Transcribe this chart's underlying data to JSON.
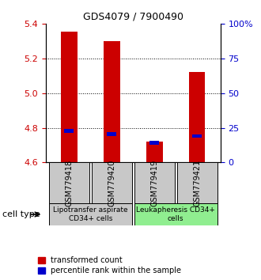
{
  "title": "GDS4079 / 7900490",
  "samples": [
    "GSM779418",
    "GSM779420",
    "GSM779419",
    "GSM779421"
  ],
  "red_values": [
    5.355,
    5.3,
    4.72,
    5.12
  ],
  "blue_values": [
    4.78,
    4.762,
    4.712,
    4.752
  ],
  "bar_bottom": 4.6,
  "ylim_left": [
    4.6,
    5.4
  ],
  "ylim_right": [
    0,
    100
  ],
  "yticks_left": [
    4.6,
    4.8,
    5.0,
    5.2,
    5.4
  ],
  "yticks_right": [
    0,
    25,
    50,
    75,
    100
  ],
  "right_tick_labels": [
    "0",
    "25",
    "50",
    "75",
    "100%"
  ],
  "dotted_lines": [
    4.8,
    5.0,
    5.2
  ],
  "group1_samples": [
    0,
    1
  ],
  "group2_samples": [
    2,
    3
  ],
  "group1_label": "Lipotransfer aspirate\nCD34+ cells",
  "group2_label": "Leukapheresis CD34+\ncells",
  "group1_color": "#c8c8c8",
  "group2_color": "#90ee90",
  "sample_box_color": "#c8c8c8",
  "cell_type_label": "cell type",
  "legend_red_label": "transformed count",
  "legend_blue_label": "percentile rank within the sample",
  "red_color": "#cc0000",
  "blue_color": "#0000cc",
  "bar_width": 0.38,
  "blue_bar_width": 0.22,
  "blue_bar_height": 0.022
}
